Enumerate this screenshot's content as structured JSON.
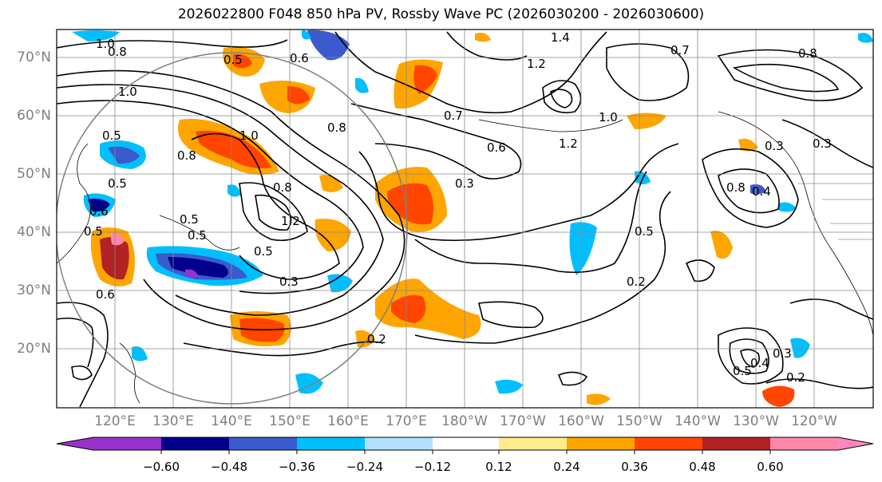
{
  "title": "2026022800 F048 850 hPa PV, Rossby Wave PC (2026030200 - 2026030600)",
  "map": {
    "projection": "plate carree",
    "lat_range": [
      10,
      75
    ],
    "lon_range_east": [
      110,
      250
    ],
    "lat_labels": [
      "70°N",
      "60°N",
      "50°N",
      "40°N",
      "30°N",
      "20°N"
    ],
    "lon_labels": [
      "120°E",
      "130°E",
      "140°E",
      "150°E",
      "160°E",
      "170°E",
      "180°W",
      "170°W",
      "160°W",
      "150°W",
      "140°W",
      "130°W",
      "120°W"
    ],
    "contour_labels": [
      "1.0",
      "0.8",
      "0.5",
      "0.6",
      "1.0",
      "0.8",
      "1.4",
      "1.2",
      "0.7",
      "1.2",
      "1.0",
      "0.8",
      "0.7",
      "0.8",
      "0.5",
      "0.3",
      "0.8",
      "0.6",
      "0.4",
      "0.5",
      "0.6",
      "0.5",
      "0.5",
      "1.2",
      "0.8",
      "0.3",
      "0.2",
      "0.3",
      "0.5",
      "0.2",
      "0.3",
      "0.5",
      "0.3",
      "0.2",
      "0.6",
      "0.5",
      "0.4",
      "1.0",
      "0.5"
    ]
  },
  "colorbar": {
    "ticks": [
      "−0.60",
      "−0.48",
      "−0.36",
      "−0.24",
      "−0.12",
      "0.12",
      "0.24",
      "0.36",
      "0.48",
      "0.60"
    ],
    "colors": [
      "#9932cc",
      "#00008b",
      "#3a5acd",
      "#00bfff",
      "#b0e2ff",
      "#ffffff",
      "#ffec8b",
      "#ffa500",
      "#ff4500",
      "#b22222",
      "#ff88a8",
      "#ff88c0"
    ]
  },
  "colors": {
    "axis_label": "#7f7f7f",
    "contour": "#000000",
    "gridline": "#888888"
  }
}
